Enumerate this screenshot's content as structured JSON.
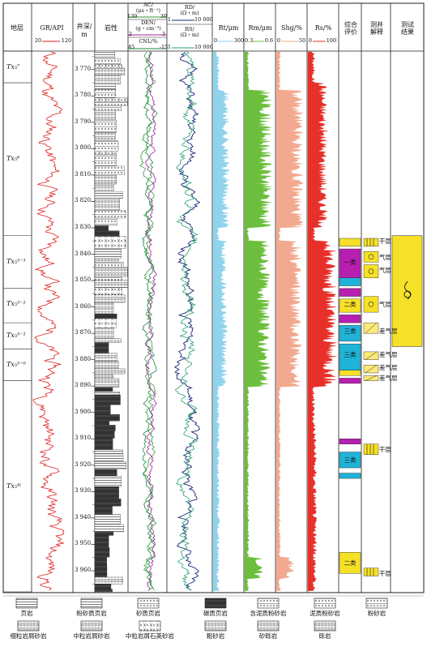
{
  "headers": {
    "layer": "地层",
    "gr": "GR/API",
    "gr_min": "20",
    "gr_max": "120",
    "depth": "井深/",
    "depth_unit": "m",
    "lith": "岩性",
    "ac": "AC/",
    "ac_unit": "(μs・ft⁻¹)",
    "ac_min": "130",
    "ac_max": "30",
    "den": "DEN/",
    "den_unit": "(g・cm⁻³)",
    "den_min": "2",
    "den_max": "3",
    "cnl": "CNL/%",
    "cnl_min": "45",
    "cnl_max": "-15",
    "rd": "RD/",
    "rd_unit": "(Ω・m)",
    "rd_min": "1",
    "rd_max": "10 000",
    "rs": "RS/",
    "rs_unit": "(Ω・m)",
    "rs_min": "1",
    "rs_max": "10 000",
    "rt": "Rt/μm",
    "rt_min": "0",
    "rt_max": "300",
    "rm": "Rm/μm",
    "rm_min": "0.3",
    "rm_max": "0.6",
    "shg": "Shg/%",
    "shg_min": "0",
    "shg_max": "50",
    "rs2": "Rs/%",
    "rs2_min": "0",
    "rs2_max": "100",
    "eval": "综合\n评价",
    "interp": "测井\n解释",
    "result": "测试\n结果"
  },
  "depths": [
    "3 770",
    "3 780",
    "3 790",
    "3 800",
    "3 810",
    "3 820",
    "3 830",
    "3 840",
    "3 850",
    "3 860",
    "3 870",
    "3 880",
    "3 890",
    "3 900",
    "3 910",
    "3 920",
    "3 930",
    "3 940",
    "3 950",
    "3 960"
  ],
  "layers": [
    "Tx₅⁷",
    "Tx₅⁶",
    "Tx₅⁵⁻³",
    "Tx₅⁵⁻²",
    "Tx₅⁵⁻¹",
    "Tx₅⁵⁻⁰",
    "Tx₅⁴⁽"
  ],
  "classes": [
    "一类",
    "二类",
    "三类",
    "三类",
    "三类",
    "二类"
  ],
  "interp": [
    "干层",
    "气层",
    "气层",
    "气层",
    "差气层",
    "差气层",
    "差气层",
    "差气层",
    "干层",
    "干层"
  ],
  "legend": [
    "页岩",
    "粉砂质页岩",
    "砂质页岩",
    "碳质页岩",
    "含泥质粉砂岩",
    "泥质粉砂岩",
    "粉砂岩",
    "细粒岩屑砂岩",
    "中粒岩屑砂岩",
    "中粒岩屑石英砂岩",
    "粗砂岩",
    "砂砾岩",
    "砾岩"
  ],
  "colors": {
    "gr": "#e02020",
    "ac": "#3a9a3a",
    "den": "#a020a0",
    "cnl": "#1a8a3a",
    "rd": "#1a2a7a",
    "rs": "#2aa070",
    "rt": "#8fd3ec",
    "rm": "#6cbf3c",
    "shg": "#f2a98f",
    "rs2": "#e8302a",
    "eval1": "#b71fb0",
    "eval2": "#f7e128",
    "eval3": "#1fb3d8",
    "result": "#f7e128"
  }
}
